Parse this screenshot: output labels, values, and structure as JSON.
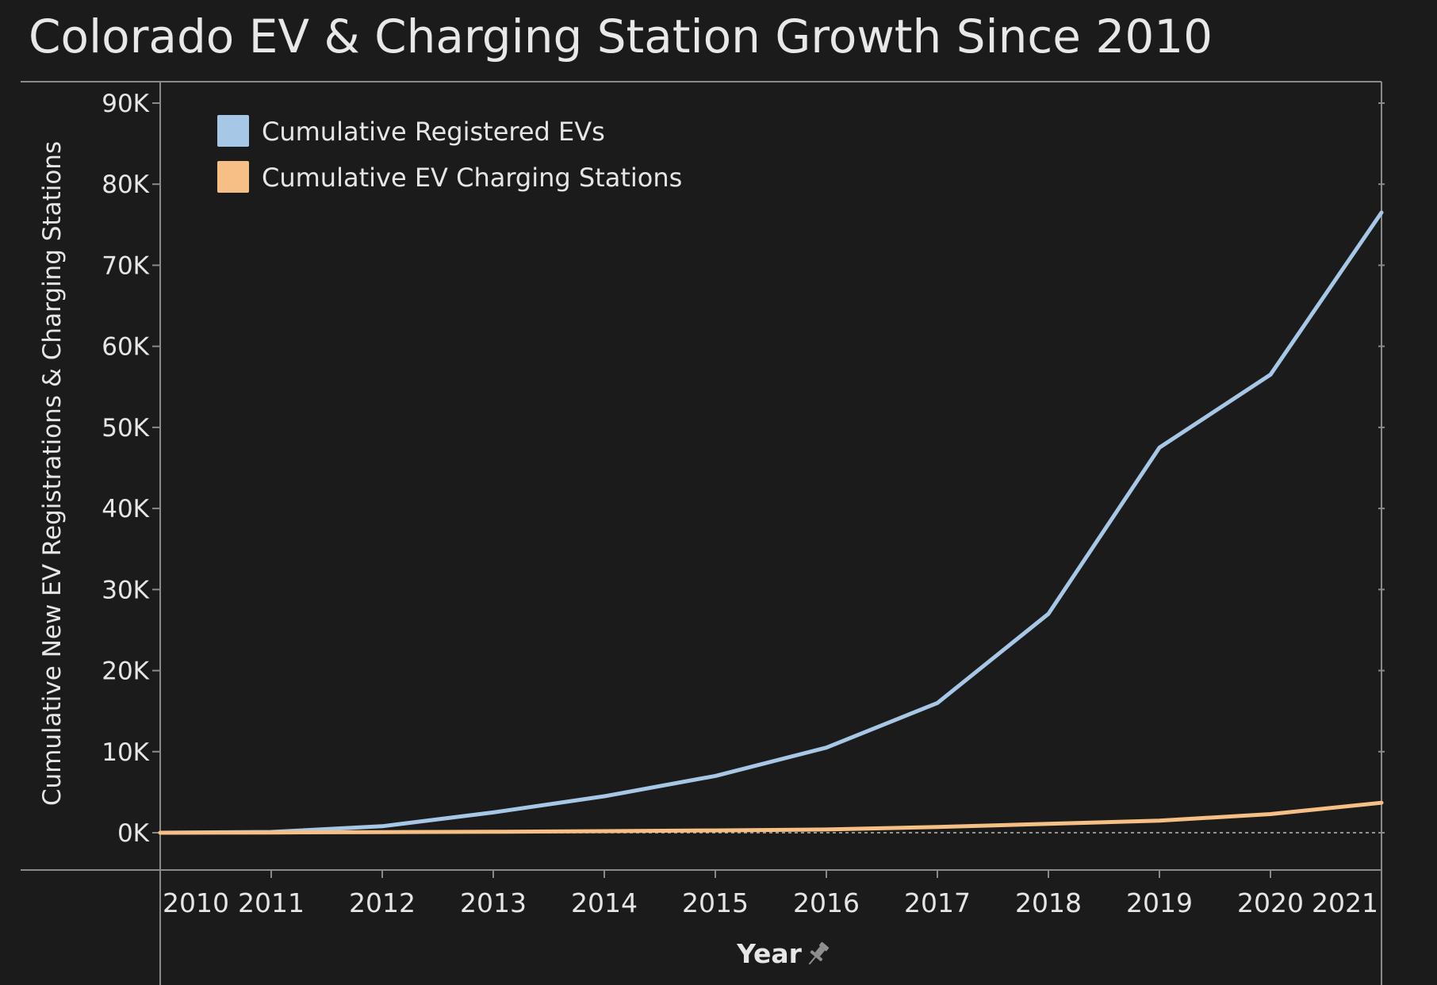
{
  "chart_data": {
    "type": "line",
    "title": "Colorado EV & Charging Station Growth Since 2010",
    "xlabel": "Year",
    "ylabel": "Cumulative New EV Registrations & Charging Stations",
    "x": [
      2010,
      2011,
      2012,
      2013,
      2014,
      2015,
      2016,
      2017,
      2018,
      2019,
      2020,
      2021
    ],
    "x_tick_labels": [
      "2010",
      "2011",
      "2012",
      "2013",
      "2014",
      "2015",
      "2016",
      "2017",
      "2018",
      "2019",
      "2020",
      "2021"
    ],
    "y_tick_values": [
      0,
      10000,
      20000,
      30000,
      40000,
      50000,
      60000,
      70000,
      80000,
      90000
    ],
    "y_tick_labels": [
      "0K",
      "10K",
      "20K",
      "30K",
      "40K",
      "50K",
      "60K",
      "70K",
      "80K",
      "90K"
    ],
    "ylim": [
      0,
      92000
    ],
    "series": [
      {
        "name": "Cumulative Registered EVs",
        "color": "#a6c8e6",
        "values": [
          0,
          100,
          800,
          2500,
          4500,
          7000,
          10500,
          16000,
          27000,
          47500,
          56500,
          76500
        ]
      },
      {
        "name": "Cumulative EV Charging Stations",
        "color": "#f5bf85",
        "values": [
          0,
          30,
          80,
          120,
          200,
          280,
          400,
          700,
          1100,
          1500,
          2300,
          3700
        ]
      }
    ],
    "legend_position": "top-left",
    "grid": false,
    "pin_icon": "pin-icon"
  }
}
